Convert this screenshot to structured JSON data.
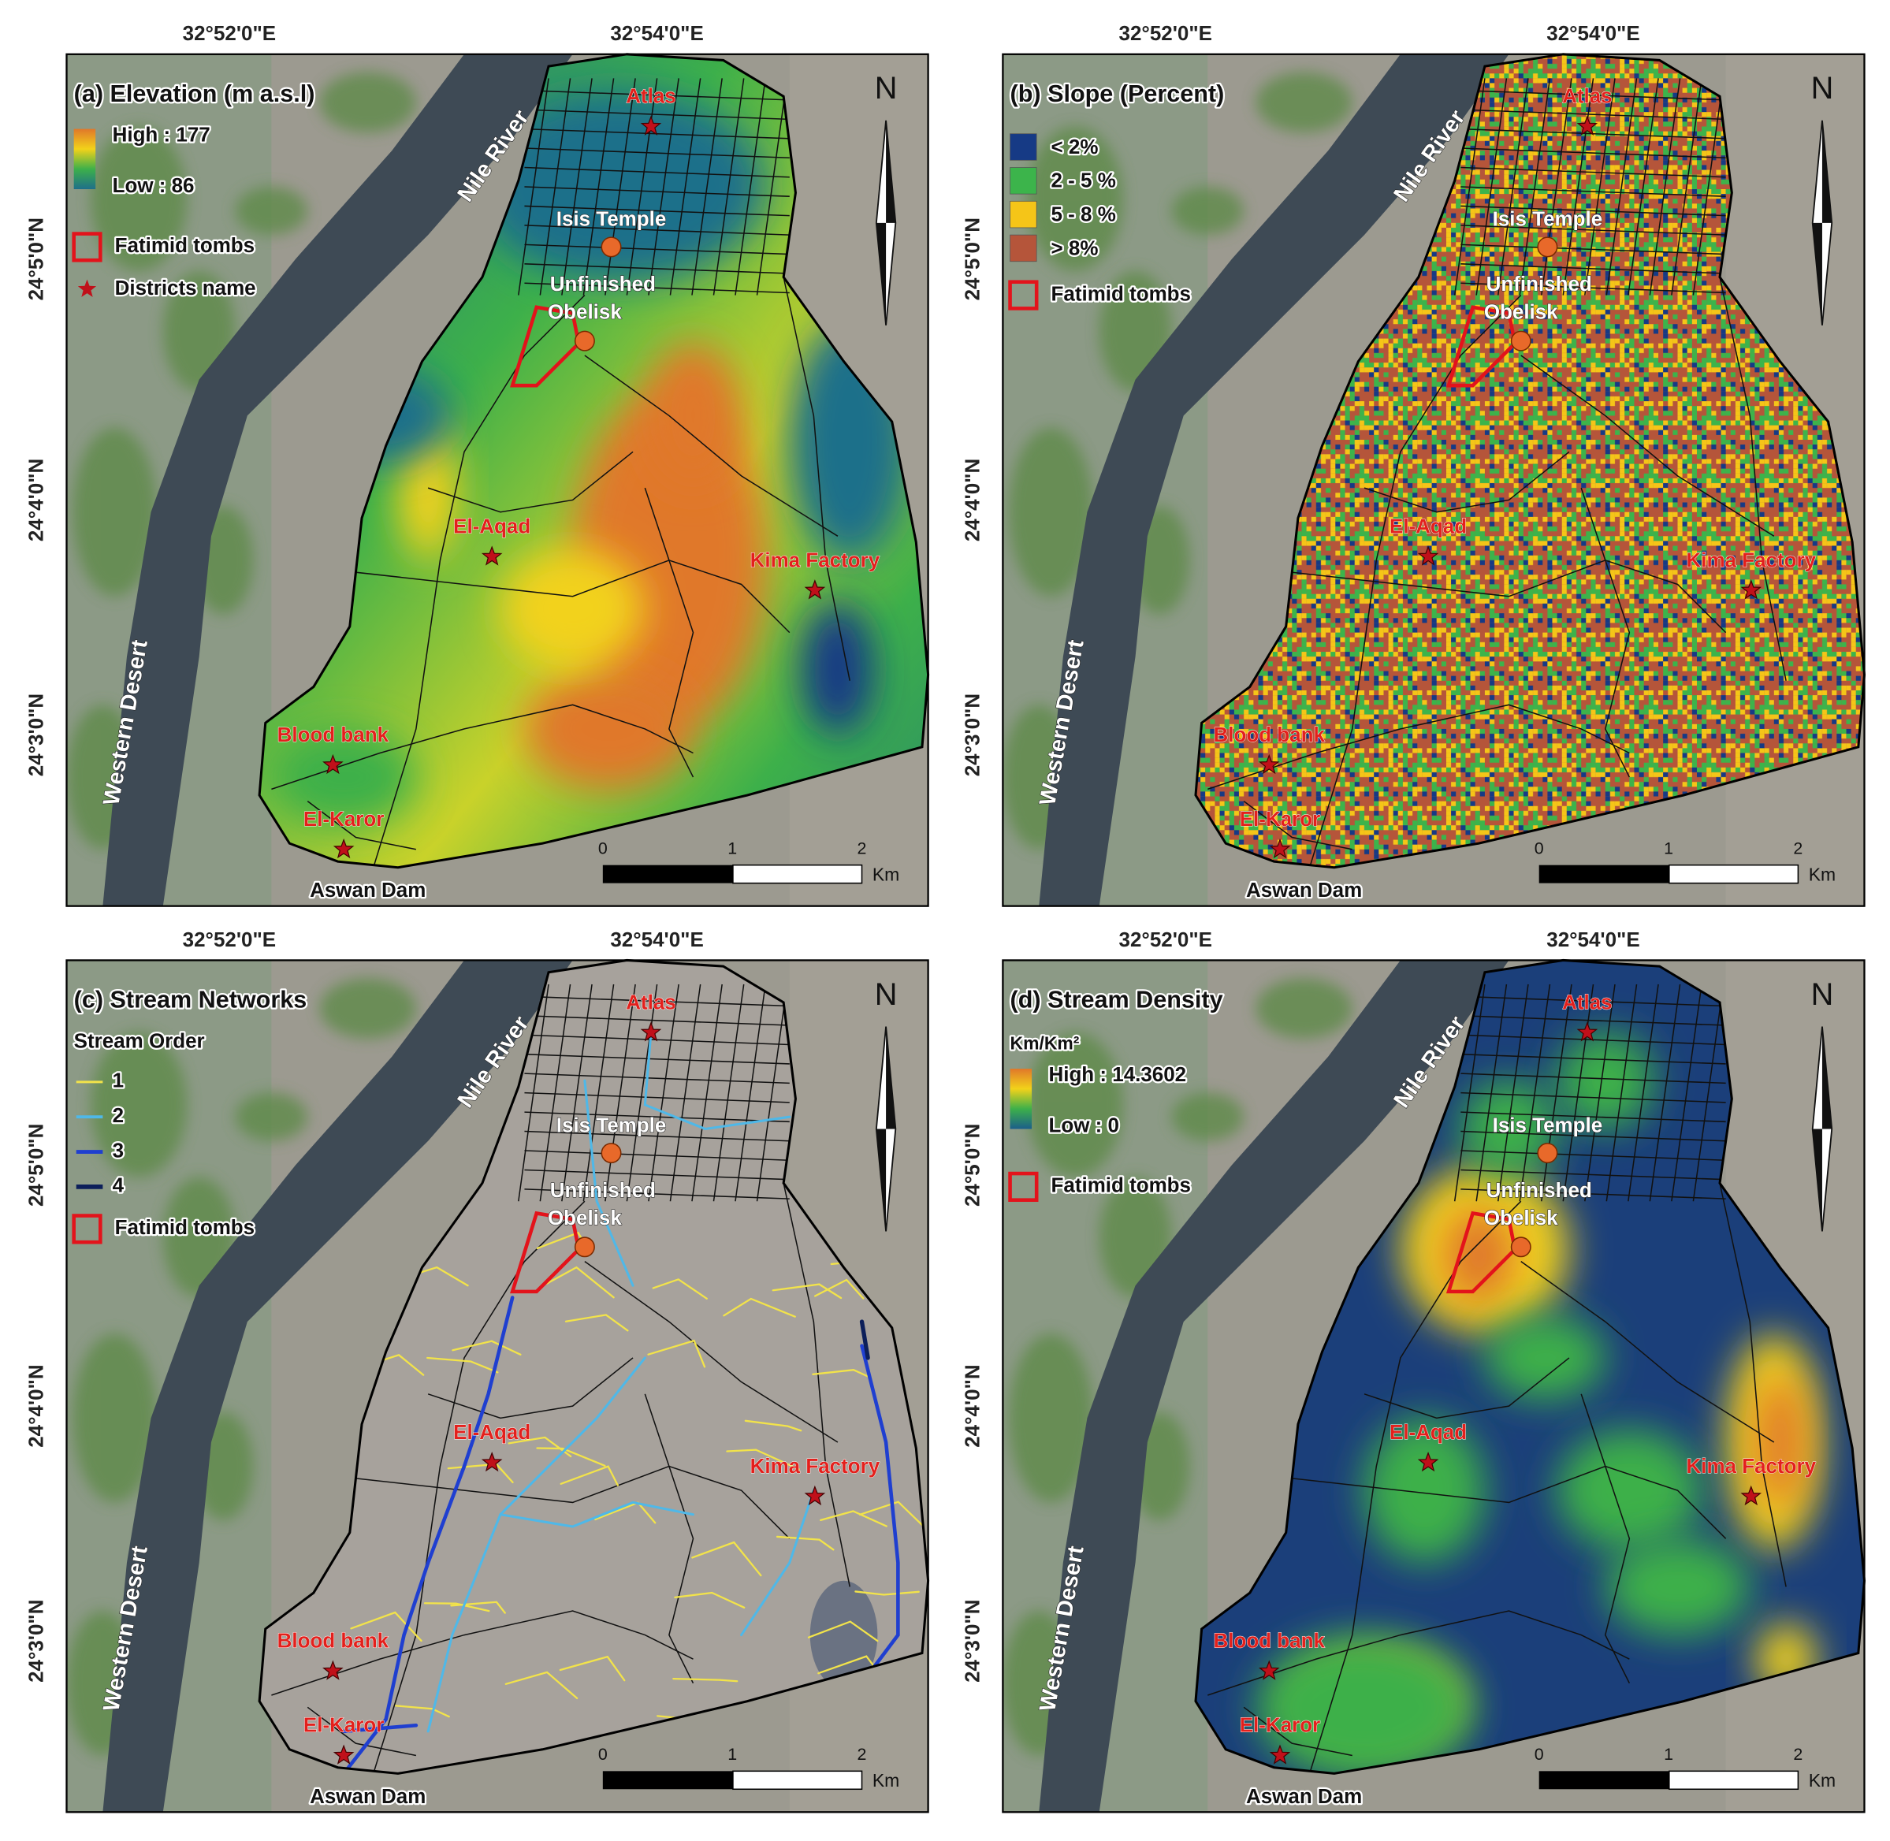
{
  "axes": {
    "longitude": [
      "32°52'0\"E",
      "32°54'0\"E"
    ],
    "latitude": [
      "24°5'0\"N",
      "24°4'0\"N",
      "24°3'0\"N"
    ]
  },
  "labels": {
    "river": "Nile River",
    "desert": "Western Desert",
    "dam": "Aswan Dam",
    "north": "N"
  },
  "places": {
    "districts": [
      "Atlas",
      "El-Aqad",
      "Kima Factory",
      "Blood bank",
      "El-Karor"
    ],
    "isis": "Isis Temple",
    "obelisk": [
      "Unfinished",
      "Obelisk"
    ]
  },
  "scale_bar": {
    "labels": [
      "0",
      "1",
      "2"
    ],
    "unit": "Km"
  },
  "panels": [
    {
      "title": "(a) Elevation (m a.s.l)",
      "surface": "elevation",
      "legend": {
        "type": "gradient",
        "colors": [
          "#e0782a",
          "#f2d21a",
          "#3db04a",
          "#1e6f8a"
        ],
        "items": [
          "High : 177",
          "Low : 86"
        ]
      },
      "tombs": "Fatimid tombs",
      "districts": "Districts name"
    },
    {
      "title": "(b) Slope (Percent)",
      "surface": "slope",
      "legend": {
        "type": "classes",
        "items": [
          {
            "label": "< 2%",
            "color": "#163a85"
          },
          {
            "label": "2 - 5 %",
            "color": "#3cb44b"
          },
          {
            "label": "5 - 8 %",
            "color": "#f5c518"
          },
          {
            "label": "> 8%",
            "color": "#b5553a"
          }
        ]
      },
      "tombs": "Fatimid tombs"
    },
    {
      "title": "(c) Stream Networks",
      "surface": "imagery",
      "legend": {
        "type": "lines",
        "title": "Stream Order",
        "items": [
          {
            "label": "1",
            "color": "#f2e34a"
          },
          {
            "label": "2",
            "color": "#4fb8e8"
          },
          {
            "label": "3",
            "color": "#1f3fd0"
          },
          {
            "label": "4",
            "color": "#0c1f5a"
          }
        ]
      },
      "tombs": "Fatimid tombs"
    },
    {
      "title": "(d) Stream Density",
      "surface": "density",
      "legend": {
        "type": "gradient",
        "title": "Km/Km²",
        "colors": [
          "#e0782a",
          "#f2d21a",
          "#3db04a",
          "#1b5e8a"
        ],
        "items": [
          "High : 14.3602",
          "Low : 0"
        ]
      },
      "tombs": "Fatimid tombs"
    }
  ]
}
